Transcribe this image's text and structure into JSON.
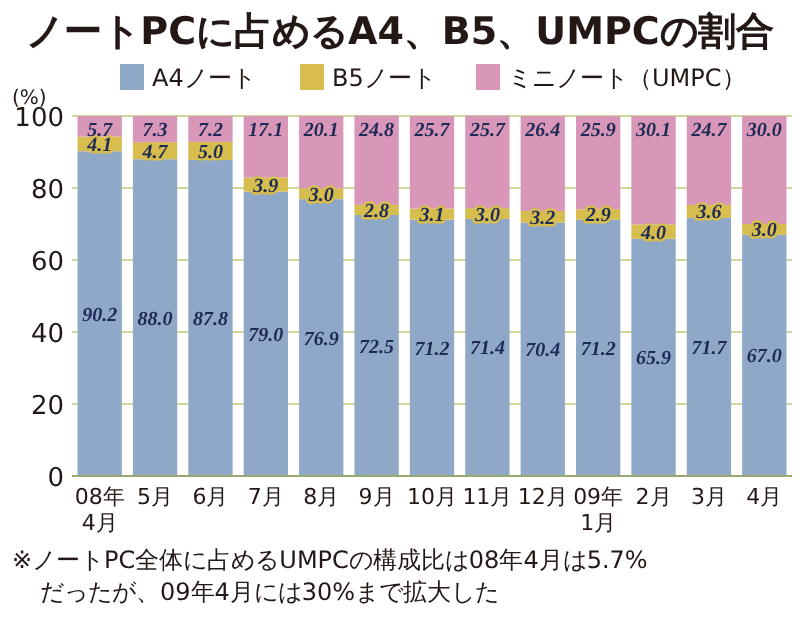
{
  "chart_data": {
    "type": "bar",
    "title": "ノートPCに占めるA4、B5、UMPCの割合",
    "ylabel": "(%)",
    "categories": [
      "08年\n4月",
      "5月",
      "6月",
      "7月",
      "8月",
      "9月",
      "10月",
      "11月",
      "12月",
      "09年\n1月",
      "2月",
      "3月",
      "4月"
    ],
    "stacked": true,
    "grid": "y",
    "legend": "top",
    "ylim": [
      0,
      100
    ],
    "yticks": [
      0,
      20,
      40,
      60,
      80,
      100
    ],
    "series": [
      {
        "name": "A4ノート",
        "color": "#8fa8c8",
        "values": [
          90.2,
          88.0,
          87.8,
          79.0,
          76.9,
          72.5,
          71.2,
          71.4,
          70.4,
          71.2,
          65.9,
          71.7,
          67.0
        ],
        "value_labels": [
          "90.2",
          "88.0",
          "87.8",
          "79.0",
          "76.9",
          "72.5",
          "71.2",
          "71.4",
          "70.4",
          "71.2",
          "65.9",
          "71.7",
          "67.0"
        ]
      },
      {
        "name": "B5ノート",
        "color": "#d6bd4e",
        "values": [
          4.1,
          4.7,
          5.0,
          3.9,
          3.0,
          2.8,
          3.1,
          3.0,
          3.2,
          2.9,
          4.0,
          3.6,
          3.0
        ],
        "value_labels": [
          "4.1",
          "4.7",
          "5.0",
          "3.9",
          "3.0",
          "2.8",
          "3.1",
          "3.0",
          "3.2",
          "2.9",
          "4.0",
          "3.6",
          "3.0"
        ]
      },
      {
        "name": "ミニノート（UMPC）",
        "color": "#d897b8",
        "values": [
          5.7,
          7.3,
          7.2,
          17.1,
          20.1,
          24.8,
          25.7,
          25.7,
          26.4,
          25.9,
          30.1,
          24.7,
          30.0
        ],
        "value_labels": [
          "5.7",
          "7.3",
          "7.2",
          "17.1",
          "20.1",
          "24.8",
          "25.7",
          "25.7",
          "26.4",
          "25.9",
          "30.1",
          "24.7",
          "30.0"
        ]
      }
    ],
    "annotations": [
      "※ノートPC全体に占めるUMPCの構成比は08年4月は5.7%\nだったが、09年4月には30%まで拡大した"
    ]
  }
}
